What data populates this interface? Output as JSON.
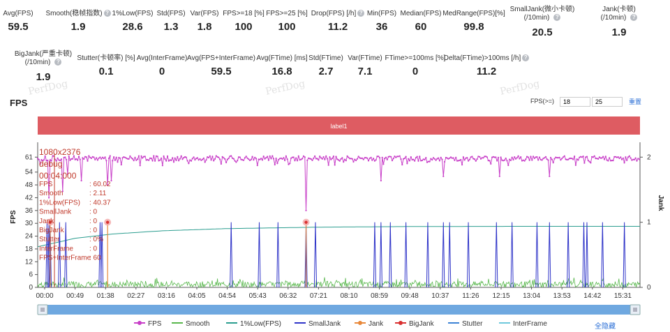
{
  "stats_row1": [
    {
      "label": "Avg(FPS)",
      "value": "59.5",
      "help": false,
      "x": 26
    },
    {
      "label": "Smooth(稳帧指数)",
      "value": "1.9",
      "help": true,
      "x": 112
    },
    {
      "label": "1%Low(FPS)",
      "value": "28.6",
      "help": false,
      "x": 190
    },
    {
      "label": "Std(FPS)",
      "value": "1.3",
      "help": false,
      "x": 245
    },
    {
      "label": "Var(FPS)",
      "value": "1.8",
      "help": false,
      "x": 293
    },
    {
      "label": "FPS>=18 [%]",
      "value": "100",
      "help": false,
      "x": 349
    },
    {
      "label": "FPS>=25 [%]",
      "value": "100",
      "help": false,
      "x": 411
    },
    {
      "label": "Drop(FPS) [/h]",
      "value": "11.2",
      "help": true,
      "x": 484
    },
    {
      "label": "Min(FPS)",
      "value": "36",
      "help": false,
      "x": 547
    },
    {
      "label": "Median(FPS)",
      "value": "60",
      "help": false,
      "x": 603
    },
    {
      "label": "MedRange(FPS)[%]",
      "value": "99.8",
      "help": false,
      "x": 679
    },
    {
      "label": "SmallJank(微小卡顿)",
      "label2": "(/10min)",
      "value": "20.5",
      "help": true,
      "x": 777
    },
    {
      "label": "Jank(卡顿)",
      "label2": "(/10min)",
      "value": "1.9",
      "help": true,
      "x": 887
    }
  ],
  "stats_row2": [
    {
      "label": "BigJank(严重卡顿)",
      "label2": "(/10min)",
      "value": "1.9",
      "help": true,
      "x": 62
    },
    {
      "label": "Stutter(卡顿率) [%]",
      "value": "0.1",
      "help": false,
      "x": 152
    },
    {
      "label": "Avg(InterFrame)",
      "value": "0",
      "help": false,
      "x": 232
    },
    {
      "label": "Avg(FPS+InterFrame)",
      "value": "59.5",
      "help": false,
      "x": 317
    },
    {
      "label": "Avg(FTime) [ms]",
      "value": "16.8",
      "help": false,
      "x": 404
    },
    {
      "label": "Std(FTime)",
      "value": "2.7",
      "help": false,
      "x": 467
    },
    {
      "label": "Var(FTime)",
      "value": "7.1",
      "help": false,
      "x": 523
    },
    {
      "label": "FTime>=100ms [%]",
      "value": "0",
      "help": false,
      "x": 595
    },
    {
      "label": "Delta(FTime)>100ms [/h]",
      "value": "11.2",
      "help": true,
      "x": 697
    }
  ],
  "watermark": "PerfDog",
  "fps_section": {
    "title": "FPS",
    "filter_label": "FPS(>=)",
    "filter_value_1": "18",
    "filter_value_2": "25",
    "reset_label": "重置"
  },
  "legend": {
    "items": [
      {
        "name": "FPS",
        "color": "#c83fc8",
        "marker": true
      },
      {
        "name": "Smooth",
        "color": "#58b74c",
        "marker": false
      },
      {
        "name": "1%Low(FPS)",
        "color": "#2a9d8f",
        "marker": false
      },
      {
        "name": "SmallJank",
        "color": "#2e33c8",
        "marker": false
      },
      {
        "name": "Jank",
        "color": "#e8883a",
        "marker": true
      },
      {
        "name": "BigJank",
        "color": "#d93030",
        "marker": true
      },
      {
        "name": "Stutter",
        "color": "#3b82d6",
        "marker": false
      },
      {
        "name": "InterFrame",
        "color": "#6ec8dc",
        "marker": false
      }
    ],
    "hide_all_label": "全隐藏"
  },
  "chart_data": {
    "type": "line",
    "band_label": "label1",
    "y_left_label": "FPS",
    "y_right_label": "Jank",
    "y_left_ticks": [
      0,
      6,
      12,
      18,
      24,
      30,
      36,
      42,
      48,
      54,
      61
    ],
    "y_left_max": 66,
    "y_right_ticks": [
      0,
      1,
      2
    ],
    "x_ticks": [
      "00:00",
      "00:49",
      "01:38",
      "02:27",
      "03:16",
      "04:05",
      "04:54",
      "05:43",
      "06:32",
      "07:21",
      "08:10",
      "08:59",
      "09:48",
      "10:37",
      "11:26",
      "12:15",
      "13:04",
      "13:53",
      "14:42",
      "15:31"
    ],
    "x_duration_s": 965,
    "fps_typical": 60,
    "fps_dips": [
      [
        18,
        42
      ],
      [
        40,
        45
      ],
      [
        43,
        46
      ],
      [
        48,
        53
      ],
      [
        70,
        50
      ],
      [
        112,
        48
      ],
      [
        113,
        36
      ],
      [
        118,
        50
      ],
      [
        430,
        36
      ],
      [
        431,
        55
      ],
      [
        550,
        50
      ],
      [
        650,
        52
      ],
      [
        740,
        52
      ],
      [
        820,
        52
      ]
    ],
    "smalljank_times": [
      15,
      18,
      20,
      35,
      45,
      100,
      103,
      310,
      355,
      385,
      430,
      445,
      540,
      550,
      565,
      590,
      625,
      650,
      660,
      690,
      735,
      760,
      800,
      820,
      850,
      875,
      880,
      905,
      940
    ],
    "bigjank_times": [
      20,
      112,
      430
    ],
    "low1_curve": [
      [
        0,
        19
      ],
      [
        60,
        23
      ],
      [
        120,
        25
      ],
      [
        200,
        26.5
      ],
      [
        300,
        27.5
      ],
      [
        450,
        28.2
      ],
      [
        600,
        28.5
      ],
      [
        800,
        28.6
      ],
      [
        965,
        28.6
      ]
    ],
    "tooltip": {
      "lines": [
        "1080x2376",
        "debug",
        "00:04:000"
      ],
      "rows": [
        {
          "k": "FPS",
          "v": ": 60.02"
        },
        {
          "k": "Smooth",
          "v": ": 2.11"
        },
        {
          "k": "1%Low(FPS)",
          "v": ": 40.37"
        },
        {
          "k": "SmallJank",
          "v": ": 0"
        },
        {
          "k": "Jank",
          "v": ": 0"
        },
        {
          "k": "BigJank",
          "v": ": 0"
        },
        {
          "k": "Stutter",
          "v": ": 0%"
        },
        {
          "k": "InterFrame",
          "v": ": 0"
        },
        {
          "k": "FPS+InterFrame",
          "v": ": 60"
        }
      ]
    }
  }
}
